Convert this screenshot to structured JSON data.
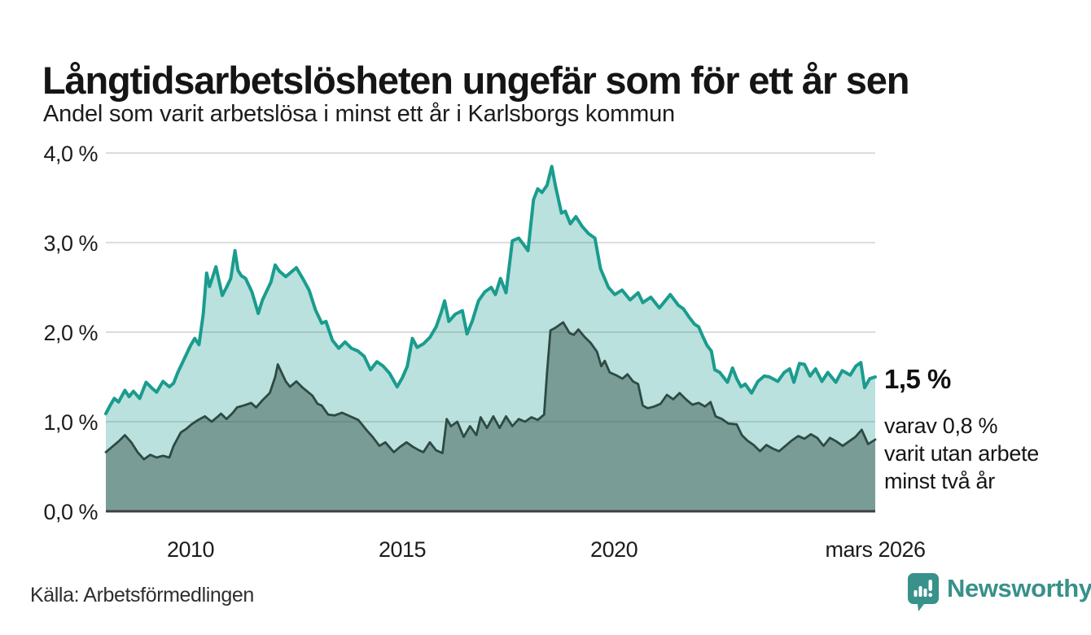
{
  "header": {
    "title": "Långtidsarbetslösheten ungefär som för ett år sen",
    "subtitle": "Andel som varit arbetslösa i minst ett år i Karlsborgs kommun"
  },
  "annotations": {
    "latest_value": "1,5 %",
    "note_lines": [
      "varav 0,8 %",
      "varit utan arbete",
      "minst två år"
    ]
  },
  "footer": {
    "source": "Källa: Arbetsförmedlingen",
    "logo_text": "Newsworthy"
  },
  "colors": {
    "series1_line": "#1a9c8e",
    "series1_fill": "rgba(26,156,142,0.30)",
    "series2_line": "#2d4a43",
    "series2_fill": "rgba(45,74,67,0.45)",
    "grid": "#dcdcdc",
    "baseline": "#3f3f3f",
    "logo": "#38918a",
    "text": "#151515"
  },
  "chart_data": {
    "type": "area",
    "title": "Långtidsarbetslösheten ungefär som för ett år sen",
    "subtitle": "Andel som varit arbetslösa i minst ett år i Karlsborgs kommun",
    "unit": "%",
    "xlim": [
      2008.0,
      2026.17
    ],
    "ylim": [
      0,
      4
    ],
    "grid": true,
    "y_ticks": [
      "4,0 %",
      "3,0 %",
      "2,0 %",
      "1,0 %",
      "0,0 %"
    ],
    "y_tick_values": [
      4.0,
      3.0,
      2.0,
      1.0,
      0.0
    ],
    "x_ticks": [
      {
        "label": "2010",
        "year": 2010
      },
      {
        "label": "2015",
        "year": 2015
      },
      {
        "label": "2020",
        "year": 2020
      },
      {
        "label": "mars 2026",
        "year": 2026.17
      }
    ],
    "annotations": {
      "latest_1yr": 1.5,
      "latest_2yr": 0.8,
      "latest_x": "mars 2026"
    },
    "series": [
      {
        "name": "Andel arbetslösa minst ett år",
        "points": [
          [
            2008.0,
            1.09
          ],
          [
            2008.1,
            1.18
          ],
          [
            2008.2,
            1.26
          ],
          [
            2008.3,
            1.22
          ],
          [
            2008.45,
            1.35
          ],
          [
            2008.55,
            1.28
          ],
          [
            2008.65,
            1.34
          ],
          [
            2008.8,
            1.26
          ],
          [
            2008.95,
            1.44
          ],
          [
            2009.1,
            1.37
          ],
          [
            2009.2,
            1.33
          ],
          [
            2009.35,
            1.45
          ],
          [
            2009.5,
            1.39
          ],
          [
            2009.6,
            1.43
          ],
          [
            2009.7,
            1.55
          ],
          [
            2009.85,
            1.7
          ],
          [
            2010.0,
            1.85
          ],
          [
            2010.1,
            1.93
          ],
          [
            2010.2,
            1.86
          ],
          [
            2010.3,
            2.2
          ],
          [
            2010.38,
            2.66
          ],
          [
            2010.45,
            2.51
          ],
          [
            2010.6,
            2.73
          ],
          [
            2010.75,
            2.41
          ],
          [
            2010.85,
            2.5
          ],
          [
            2010.95,
            2.6
          ],
          [
            2011.05,
            2.91
          ],
          [
            2011.12,
            2.69
          ],
          [
            2011.2,
            2.63
          ],
          [
            2011.3,
            2.6
          ],
          [
            2011.45,
            2.45
          ],
          [
            2011.6,
            2.21
          ],
          [
            2011.7,
            2.36
          ],
          [
            2011.8,
            2.46
          ],
          [
            2011.9,
            2.56
          ],
          [
            2012.0,
            2.75
          ],
          [
            2012.1,
            2.68
          ],
          [
            2012.25,
            2.62
          ],
          [
            2012.4,
            2.68
          ],
          [
            2012.5,
            2.72
          ],
          [
            2012.65,
            2.6
          ],
          [
            2012.8,
            2.47
          ],
          [
            2012.95,
            2.25
          ],
          [
            2013.1,
            2.1
          ],
          [
            2013.2,
            2.12
          ],
          [
            2013.35,
            1.91
          ],
          [
            2013.5,
            1.82
          ],
          [
            2013.65,
            1.89
          ],
          [
            2013.8,
            1.82
          ],
          [
            2013.95,
            1.79
          ],
          [
            2014.1,
            1.73
          ],
          [
            2014.25,
            1.58
          ],
          [
            2014.4,
            1.67
          ],
          [
            2014.55,
            1.62
          ],
          [
            2014.7,
            1.54
          ],
          [
            2014.88,
            1.39
          ],
          [
            2015.0,
            1.49
          ],
          [
            2015.12,
            1.62
          ],
          [
            2015.24,
            1.93
          ],
          [
            2015.35,
            1.83
          ],
          [
            2015.5,
            1.87
          ],
          [
            2015.65,
            1.94
          ],
          [
            2015.8,
            2.06
          ],
          [
            2015.92,
            2.22
          ],
          [
            2016.0,
            2.35
          ],
          [
            2016.1,
            2.12
          ],
          [
            2016.25,
            2.2
          ],
          [
            2016.42,
            2.24
          ],
          [
            2016.53,
            1.98
          ],
          [
            2016.65,
            2.12
          ],
          [
            2016.8,
            2.35
          ],
          [
            2016.95,
            2.45
          ],
          [
            2017.1,
            2.5
          ],
          [
            2017.2,
            2.42
          ],
          [
            2017.32,
            2.6
          ],
          [
            2017.45,
            2.44
          ],
          [
            2017.6,
            3.02
          ],
          [
            2017.75,
            3.05
          ],
          [
            2017.88,
            2.97
          ],
          [
            2017.97,
            2.91
          ],
          [
            2018.1,
            3.48
          ],
          [
            2018.2,
            3.6
          ],
          [
            2018.3,
            3.56
          ],
          [
            2018.42,
            3.64
          ],
          [
            2018.53,
            3.85
          ],
          [
            2018.62,
            3.63
          ],
          [
            2018.76,
            3.33
          ],
          [
            2018.85,
            3.35
          ],
          [
            2018.97,
            3.21
          ],
          [
            2019.1,
            3.29
          ],
          [
            2019.25,
            3.18
          ],
          [
            2019.4,
            3.1
          ],
          [
            2019.55,
            3.05
          ],
          [
            2019.68,
            2.71
          ],
          [
            2019.87,
            2.5
          ],
          [
            2020.02,
            2.42
          ],
          [
            2020.19,
            2.47
          ],
          [
            2020.38,
            2.36
          ],
          [
            2020.57,
            2.44
          ],
          [
            2020.68,
            2.33
          ],
          [
            2020.87,
            2.39
          ],
          [
            2021.07,
            2.27
          ],
          [
            2021.33,
            2.42
          ],
          [
            2021.52,
            2.3
          ],
          [
            2021.64,
            2.26
          ],
          [
            2021.77,
            2.17
          ],
          [
            2021.9,
            2.09
          ],
          [
            2022.0,
            2.06
          ],
          [
            2022.1,
            1.95
          ],
          [
            2022.2,
            1.85
          ],
          [
            2022.3,
            1.79
          ],
          [
            2022.38,
            1.58
          ],
          [
            2022.5,
            1.55
          ],
          [
            2022.68,
            1.44
          ],
          [
            2022.8,
            1.6
          ],
          [
            2022.9,
            1.48
          ],
          [
            2023.0,
            1.39
          ],
          [
            2023.1,
            1.42
          ],
          [
            2023.25,
            1.32
          ],
          [
            2023.4,
            1.45
          ],
          [
            2023.55,
            1.51
          ],
          [
            2023.67,
            1.5
          ],
          [
            2023.87,
            1.45
          ],
          [
            2024.02,
            1.55
          ],
          [
            2024.15,
            1.59
          ],
          [
            2024.25,
            1.44
          ],
          [
            2024.38,
            1.65
          ],
          [
            2024.5,
            1.64
          ],
          [
            2024.63,
            1.51
          ],
          [
            2024.76,
            1.59
          ],
          [
            2024.91,
            1.45
          ],
          [
            2025.05,
            1.55
          ],
          [
            2025.24,
            1.44
          ],
          [
            2025.39,
            1.57
          ],
          [
            2025.58,
            1.52
          ],
          [
            2025.71,
            1.62
          ],
          [
            2025.83,
            1.66
          ],
          [
            2025.92,
            1.38
          ],
          [
            2026.04,
            1.48
          ],
          [
            2026.17,
            1.5
          ]
        ]
      },
      {
        "name": "Andel arbetslösa minst två år",
        "points": [
          [
            2008.0,
            0.66
          ],
          [
            2008.15,
            0.72
          ],
          [
            2008.3,
            0.78
          ],
          [
            2008.45,
            0.85
          ],
          [
            2008.6,
            0.77
          ],
          [
            2008.75,
            0.66
          ],
          [
            2008.9,
            0.58
          ],
          [
            2009.05,
            0.63
          ],
          [
            2009.2,
            0.6
          ],
          [
            2009.35,
            0.62
          ],
          [
            2009.5,
            0.6
          ],
          [
            2009.6,
            0.73
          ],
          [
            2009.77,
            0.88
          ],
          [
            2009.9,
            0.92
          ],
          [
            2010.02,
            0.97
          ],
          [
            2010.18,
            1.02
          ],
          [
            2010.34,
            1.06
          ],
          [
            2010.5,
            1.0
          ],
          [
            2010.65,
            1.06
          ],
          [
            2010.72,
            1.09
          ],
          [
            2010.85,
            1.03
          ],
          [
            2011.0,
            1.1
          ],
          [
            2011.1,
            1.16
          ],
          [
            2011.25,
            1.18
          ],
          [
            2011.43,
            1.21
          ],
          [
            2011.55,
            1.16
          ],
          [
            2011.7,
            1.24
          ],
          [
            2011.87,
            1.32
          ],
          [
            2012.0,
            1.5
          ],
          [
            2012.06,
            1.64
          ],
          [
            2012.15,
            1.55
          ],
          [
            2012.25,
            1.45
          ],
          [
            2012.35,
            1.39
          ],
          [
            2012.5,
            1.45
          ],
          [
            2012.65,
            1.38
          ],
          [
            2012.88,
            1.29
          ],
          [
            2013.0,
            1.2
          ],
          [
            2013.1,
            1.18
          ],
          [
            2013.25,
            1.08
          ],
          [
            2013.4,
            1.07
          ],
          [
            2013.58,
            1.1
          ],
          [
            2013.77,
            1.06
          ],
          [
            2013.96,
            1.02
          ],
          [
            2014.15,
            0.91
          ],
          [
            2014.3,
            0.83
          ],
          [
            2014.46,
            0.73
          ],
          [
            2014.6,
            0.77
          ],
          [
            2014.8,
            0.66
          ],
          [
            2014.95,
            0.72
          ],
          [
            2015.1,
            0.77
          ],
          [
            2015.25,
            0.72
          ],
          [
            2015.4,
            0.68
          ],
          [
            2015.5,
            0.66
          ],
          [
            2015.65,
            0.77
          ],
          [
            2015.8,
            0.68
          ],
          [
            2015.95,
            0.65
          ],
          [
            2016.05,
            1.03
          ],
          [
            2016.15,
            0.95
          ],
          [
            2016.3,
            1.0
          ],
          [
            2016.45,
            0.83
          ],
          [
            2016.6,
            0.95
          ],
          [
            2016.75,
            0.85
          ],
          [
            2016.85,
            1.05
          ],
          [
            2017.0,
            0.93
          ],
          [
            2017.15,
            1.06
          ],
          [
            2017.3,
            0.93
          ],
          [
            2017.45,
            1.06
          ],
          [
            2017.6,
            0.95
          ],
          [
            2017.75,
            1.03
          ],
          [
            2017.9,
            1.0
          ],
          [
            2018.05,
            1.05
          ],
          [
            2018.2,
            1.02
          ],
          [
            2018.35,
            1.08
          ],
          [
            2018.42,
            1.55
          ],
          [
            2018.5,
            2.02
          ],
          [
            2018.62,
            2.05
          ],
          [
            2018.8,
            2.11
          ],
          [
            2018.95,
            1.99
          ],
          [
            2019.05,
            1.97
          ],
          [
            2019.16,
            2.03
          ],
          [
            2019.3,
            1.95
          ],
          [
            2019.45,
            1.88
          ],
          [
            2019.6,
            1.78
          ],
          [
            2019.7,
            1.62
          ],
          [
            2019.78,
            1.68
          ],
          [
            2019.9,
            1.55
          ],
          [
            2020.05,
            1.52
          ],
          [
            2020.2,
            1.48
          ],
          [
            2020.32,
            1.53
          ],
          [
            2020.45,
            1.45
          ],
          [
            2020.57,
            1.42
          ],
          [
            2020.68,
            1.18
          ],
          [
            2020.8,
            1.15
          ],
          [
            2020.95,
            1.17
          ],
          [
            2021.1,
            1.2
          ],
          [
            2021.25,
            1.3
          ],
          [
            2021.4,
            1.25
          ],
          [
            2021.55,
            1.32
          ],
          [
            2021.7,
            1.25
          ],
          [
            2021.85,
            1.19
          ],
          [
            2022.0,
            1.21
          ],
          [
            2022.15,
            1.17
          ],
          [
            2022.28,
            1.22
          ],
          [
            2022.4,
            1.06
          ],
          [
            2022.55,
            1.03
          ],
          [
            2022.7,
            0.98
          ],
          [
            2022.9,
            0.97
          ],
          [
            2023.02,
            0.85
          ],
          [
            2023.15,
            0.79
          ],
          [
            2023.3,
            0.74
          ],
          [
            2023.45,
            0.67
          ],
          [
            2023.6,
            0.74
          ],
          [
            2023.75,
            0.7
          ],
          [
            2023.9,
            0.67
          ],
          [
            2024.05,
            0.73
          ],
          [
            2024.2,
            0.79
          ],
          [
            2024.35,
            0.84
          ],
          [
            2024.5,
            0.81
          ],
          [
            2024.65,
            0.86
          ],
          [
            2024.8,
            0.82
          ],
          [
            2024.95,
            0.73
          ],
          [
            2025.1,
            0.82
          ],
          [
            2025.25,
            0.78
          ],
          [
            2025.4,
            0.73
          ],
          [
            2025.55,
            0.78
          ],
          [
            2025.7,
            0.83
          ],
          [
            2025.85,
            0.91
          ],
          [
            2026.0,
            0.75
          ],
          [
            2026.17,
            0.8
          ]
        ]
      }
    ]
  }
}
